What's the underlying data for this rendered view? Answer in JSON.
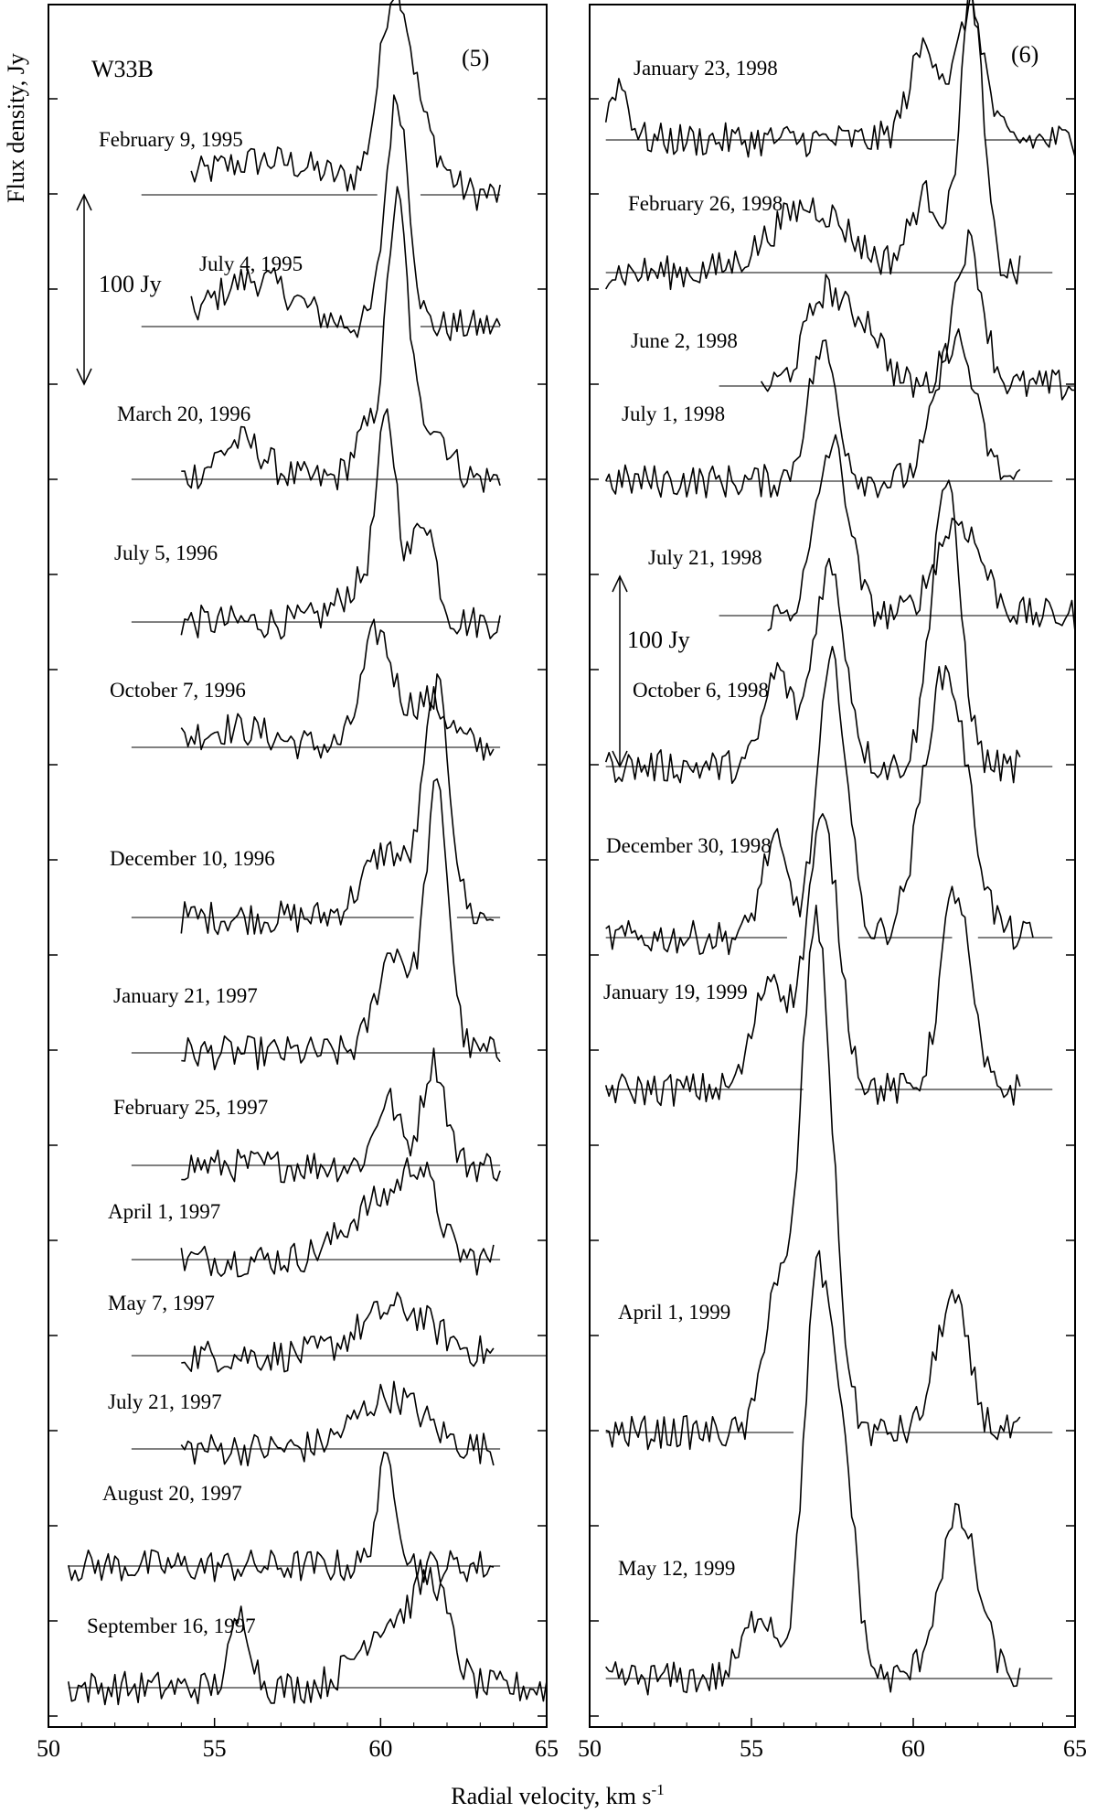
{
  "chart_data": {
    "type": "line",
    "source_label": "W33B",
    "ylabel": "Flux density, Jy",
    "xlabel_main": "Radial velocity, km s",
    "xlabel_sup": "-1",
    "xlim": [
      50,
      65
    ],
    "xticks": [
      "50",
      "55",
      "60",
      "65"
    ],
    "scale_bar": "100 Jy",
    "panels": [
      {
        "id": "(5)",
        "spectra": [
          {
            "date": "February 9, 1995",
            "peaks": [
              [
                56.5,
                18,
                2.0
              ],
              [
                60.4,
                95,
                0.45
              ],
              [
                61.2,
                30,
                0.6
              ]
            ],
            "baseline_gaps": [
              [
                59.9,
                61.2
              ]
            ]
          },
          {
            "date": "July 4, 1995",
            "peaks": [
              [
                56.2,
                25,
                1.2
              ],
              [
                60.5,
                120,
                0.35
              ]
            ],
            "baseline_gaps": [
              [
                60.1,
                61.2
              ]
            ]
          },
          {
            "date": "March 20, 1996",
            "peaks": [
              [
                55.8,
                20,
                0.7
              ],
              [
                59.6,
                25,
                0.4
              ],
              [
                60.5,
                142,
                0.32
              ],
              [
                61.5,
                30,
                0.5
              ]
            ],
            "baseline_gaps": []
          },
          {
            "date": "July 5, 1996",
            "peaks": [
              [
                59.5,
                20,
                0.7
              ],
              [
                60.2,
                95,
                0.3
              ],
              [
                61.3,
                55,
                0.35
              ]
            ],
            "baseline_gaps": []
          },
          {
            "date": "October 7, 1996",
            "peaks": [
              [
                55.5,
                10,
                1.2
              ],
              [
                59.9,
                60,
                0.45
              ],
              [
                61.4,
                25,
                0.6
              ]
            ],
            "baseline_gaps": []
          },
          {
            "date": "December 10, 1996",
            "peaks": [
              [
                60.2,
                35,
                0.7
              ],
              [
                61.7,
                118,
                0.38
              ]
            ],
            "baseline_gaps": [
              [
                61.0,
                62.3
              ]
            ]
          },
          {
            "date": "January 21, 1997",
            "peaks": [
              [
                60.4,
                55,
                0.5
              ],
              [
                61.7,
                138,
                0.35
              ]
            ],
            "baseline_gaps": []
          },
          {
            "date": "February 25, 1997",
            "peaks": [
              [
                60.2,
                35,
                0.35
              ],
              [
                61.6,
                55,
                0.35
              ]
            ],
            "baseline_gaps": []
          },
          {
            "date": "April 1, 1997",
            "peaks": [
              [
                60.0,
                30,
                1.0
              ],
              [
                61.2,
                35,
                0.5
              ]
            ],
            "baseline_gaps": []
          },
          {
            "date": "May 7, 1997",
            "peaks": [
              [
                60.5,
                25,
                1.1
              ]
            ],
            "baseline_gaps": []
          },
          {
            "date": "July 21, 1997",
            "peaks": [
              [
                60.3,
                28,
                1.0
              ]
            ],
            "baseline_gaps": []
          },
          {
            "date": "August 20, 1997",
            "peaks": [
              [
                60.2,
                55,
                0.3
              ]
            ],
            "baseline_gaps": []
          },
          {
            "date": "September 16, 1997",
            "date_line2": "",
            "peaks": [
              [
                55.8,
                38,
                0.3
              ],
              [
                60.3,
                35,
                0.9
              ],
              [
                61.6,
                45,
                0.5
              ]
            ],
            "baseline_gaps": []
          }
        ]
      },
      {
        "id": "(6)",
        "spectra": [
          {
            "date": "January 23, 1998",
            "peaks": [
              [
                50.9,
                30,
                0.3
              ],
              [
                60.4,
                50,
                0.5
              ],
              [
                61.8,
                70,
                0.4
              ]
            ],
            "baseline_gaps": [
              [
                61.3,
                62.2
              ]
            ]
          },
          {
            "date": "February 26, 1998",
            "peaks": [
              [
                56.8,
                35,
                1.2
              ],
              [
                60.4,
                40,
                0.5
              ],
              [
                61.8,
                145,
                0.35
              ]
            ],
            "baseline_gaps": []
          },
          {
            "date": "June 2, 1998",
            "peaks": [
              [
                57.3,
                50,
                0.6
              ],
              [
                58.6,
                30,
                0.5
              ],
              [
                61.7,
                75,
                0.45
              ]
            ],
            "baseline_gaps": []
          },
          {
            "date": "July 1, 1998",
            "peaks": [
              [
                57.2,
                70,
                0.45
              ],
              [
                61.3,
                75,
                0.6
              ]
            ],
            "baseline_gaps": []
          },
          {
            "date": "July 21, 1998",
            "peaks": [
              [
                57.5,
                90,
                0.5
              ],
              [
                61.4,
                50,
                0.7
              ]
            ],
            "baseline_gaps": []
          },
          {
            "date": "October 6, 1998",
            "peaks": [
              [
                55.8,
                50,
                0.4
              ],
              [
                57.4,
                105,
                0.5
              ],
              [
                61.0,
                150,
                0.45
              ]
            ],
            "baseline_gaps": []
          },
          {
            "date": "December 30, 1998",
            "peaks": [
              [
                55.7,
                50,
                0.4
              ],
              [
                57.5,
                145,
                0.45
              ],
              [
                61.0,
                140,
                0.7
              ]
            ],
            "baseline_gaps": [
              [
                56.1,
                58.3
              ],
              [
                61.2,
                62.0
              ]
            ]
          },
          {
            "date": "January 19, 1999",
            "peaks": [
              [
                55.6,
                60,
                0.5
              ],
              [
                57.2,
                140,
                0.5
              ],
              [
                61.3,
                105,
                0.45
              ]
            ],
            "baseline_gaps": [
              [
                56.6,
                58.2
              ]
            ]
          },
          {
            "date": "April 1, 1999",
            "peaks": [
              [
                55.7,
                70,
                0.35
              ],
              [
                57.0,
                270,
                0.5
              ],
              [
                61.2,
                70,
                0.5
              ]
            ],
            "baseline_gaps": [
              [
                56.3,
                58.8
              ]
            ]
          },
          {
            "date": "May 12, 1999",
            "peaks": [
              [
                55.3,
                35,
                0.5
              ],
              [
                57.0,
                200,
                0.4
              ],
              [
                57.8,
                115,
                0.4
              ],
              [
                61.4,
                85,
                0.6
              ]
            ],
            "baseline_gaps": []
          }
        ]
      }
    ]
  }
}
